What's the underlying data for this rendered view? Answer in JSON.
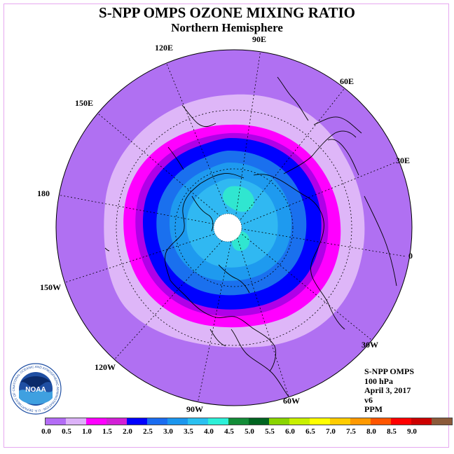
{
  "title": "S-NPP OMPS OZONE MIXING RATIO",
  "subtitle": "Northern Hemisphere",
  "longitude_labels": {
    "l90e": "90E",
    "l60e": "60E",
    "l30e": "30E",
    "l0": "0",
    "l30w": "30W",
    "l60w": "60W",
    "l90w": "90W",
    "l120w": "120W",
    "l150w": "150W",
    "l180": "180",
    "l150e": "150E",
    "l120e": "120E"
  },
  "info": {
    "instrument": "S-NPP OMPS",
    "level": "100 hPa",
    "date": "April 3, 2017",
    "version": "v6",
    "units": "PPM"
  },
  "logo": {
    "text": "NOAA",
    "ring_text": "NATIONAL OCEANIC AND ATMOSPHERIC ADMINISTRATION · U.S. DEPARTMENT OF COMMERCE"
  },
  "colorbar": {
    "colors": [
      "#b36cf5",
      "#dcb2f8",
      "#ff00ff",
      "#d21fd6",
      "#0000ff",
      "#1a6cf0",
      "#1b96ee",
      "#2ac0f0",
      "#2df0d8",
      "#138c38",
      "#006420",
      "#8ad400",
      "#c8f000",
      "#ffff00",
      "#ffcc00",
      "#ff9900",
      "#ff5500",
      "#ff0000",
      "#cc0000",
      "#8b5a3a"
    ],
    "tick_labels": [
      "0.0",
      "0.5",
      "1.0",
      "1.5",
      "2.0",
      "2.5",
      "3.0",
      "3.5",
      "4.0",
      "4.5",
      "5.0",
      "5.5",
      "6.0",
      "6.5",
      "7.0",
      "7.5",
      "8.0",
      "8.5",
      "9.0"
    ]
  },
  "map_colors": {
    "outer": "#b070f2",
    "light": "#deb6f8",
    "magenta": "#ff00ff",
    "violet": "#b000e8",
    "blue": "#0000ff",
    "mid_blue": "#1a70ee",
    "sky": "#1e9aef",
    "light_sky": "#30b8f2",
    "cyan": "#30e6d0",
    "pole_fill": "#ffffff"
  }
}
